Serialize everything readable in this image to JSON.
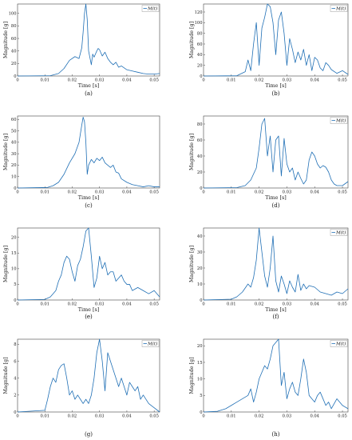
{
  "chart_data": [
    {
      "type": "line",
      "caption": "(a)",
      "xlabel": "Time [s]",
      "ylabel": "Magnitude [g]",
      "xlim": [
        0,
        0.052
      ],
      "ylim": [
        0,
        115
      ],
      "xticks": [
        "0",
        "0.01",
        "0.02",
        "0.03",
        "0.04",
        "0.05"
      ],
      "yticks": [
        0,
        20,
        40,
        60,
        80,
        100
      ],
      "legend": "M(t)",
      "legend_position": "top-right",
      "series": [
        {
          "name": "M(t)",
          "x": [
            0,
            0.012,
            0.015,
            0.017,
            0.019,
            0.021,
            0.0225,
            0.0235,
            0.024,
            0.0245,
            0.025,
            0.0255,
            0.026,
            0.027,
            0.0275,
            0.028,
            0.029,
            0.0295,
            0.03,
            0.031,
            0.032,
            0.033,
            0.034,
            0.035,
            0.036,
            0.037,
            0.038,
            0.04,
            0.042,
            0.044,
            0.046,
            0.048,
            0.05,
            0.052
          ],
          "y": [
            0,
            0.5,
            4,
            12,
            25,
            31,
            28,
            45,
            70,
            100,
            115,
            90,
            40,
            18,
            35,
            30,
            40,
            44,
            42,
            32,
            38,
            28,
            22,
            18,
            22,
            14,
            16,
            10,
            8,
            6,
            4,
            3,
            3,
            4
          ]
        }
      ]
    },
    {
      "type": "line",
      "caption": "(b)",
      "xlabel": "Time [s]",
      "ylabel": "Magnitude [g]",
      "xlim": [
        0,
        0.052
      ],
      "ylim": [
        0,
        135
      ],
      "xticks": [
        "0",
        "0.01",
        "0.02",
        "0.03",
        "0.04",
        "0.05"
      ],
      "yticks": [
        0,
        20,
        40,
        60,
        80,
        100,
        120
      ],
      "legend": "M(t)",
      "legend_position": "top-right",
      "series": [
        {
          "name": "M(t)",
          "x": [
            0,
            0.012,
            0.015,
            0.016,
            0.017,
            0.018,
            0.019,
            0.02,
            0.021,
            0.022,
            0.023,
            0.024,
            0.025,
            0.026,
            0.027,
            0.028,
            0.029,
            0.03,
            0.031,
            0.032,
            0.033,
            0.034,
            0.035,
            0.036,
            0.037,
            0.038,
            0.039,
            0.04,
            0.041,
            0.042,
            0.043,
            0.044,
            0.045,
            0.046,
            0.048,
            0.05,
            0.052
          ],
          "y": [
            0,
            0.5,
            8,
            30,
            10,
            60,
            100,
            20,
            90,
            110,
            135,
            130,
            100,
            40,
            105,
            120,
            80,
            20,
            70,
            50,
            25,
            45,
            30,
            50,
            20,
            40,
            10,
            35,
            30,
            15,
            10,
            25,
            20,
            12,
            5,
            10,
            3
          ]
        }
      ]
    },
    {
      "type": "line",
      "caption": "(c)",
      "xlabel": "Time [s]",
      "ylabel": "Magnitude [g]",
      "xlim": [
        0,
        0.052
      ],
      "ylim": [
        0,
        63
      ],
      "xticks": [
        "0",
        "0.01",
        "0.02",
        "0.03",
        "0.04",
        "0.05"
      ],
      "yticks": [
        0,
        10,
        20,
        30,
        40,
        50,
        60
      ],
      "legend": "",
      "legend_position": "",
      "series": [
        {
          "name": "M(t)",
          "x": [
            0,
            0.011,
            0.013,
            0.015,
            0.017,
            0.019,
            0.021,
            0.0225,
            0.0235,
            0.024,
            0.0245,
            0.025,
            0.0255,
            0.026,
            0.027,
            0.028,
            0.029,
            0.03,
            0.031,
            0.032,
            0.033,
            0.034,
            0.035,
            0.036,
            0.037,
            0.038,
            0.04,
            0.042,
            0.044,
            0.046,
            0.048,
            0.05,
            0.052
          ],
          "y": [
            0,
            0.5,
            2,
            5,
            12,
            22,
            30,
            40,
            55,
            62,
            58,
            40,
            12,
            20,
            25,
            22,
            26,
            24,
            27,
            22,
            20,
            18,
            20,
            14,
            13,
            8,
            5,
            3,
            2,
            1,
            2,
            1,
            1
          ]
        }
      ]
    },
    {
      "type": "line",
      "caption": "(d)",
      "xlabel": "Time [s]",
      "ylabel": "Magnitude [g]",
      "xlim": [
        0,
        0.052
      ],
      "ylim": [
        0,
        90
      ],
      "xticks": [
        "0",
        "0.01",
        "0.02",
        "0.03",
        "0.04",
        "0.05"
      ],
      "yticks": [
        0,
        20,
        40,
        60,
        80
      ],
      "legend": "M(t)",
      "legend_position": "top-right",
      "series": [
        {
          "name": "M(t)",
          "x": [
            0,
            0.012,
            0.015,
            0.017,
            0.019,
            0.02,
            0.021,
            0.022,
            0.023,
            0.024,
            0.025,
            0.026,
            0.027,
            0.028,
            0.029,
            0.03,
            0.031,
            0.032,
            0.033,
            0.034,
            0.035,
            0.036,
            0.037,
            0.038,
            0.039,
            0.04,
            0.041,
            0.042,
            0.043,
            0.044,
            0.045,
            0.046,
            0.047,
            0.048,
            0.05,
            0.052
          ],
          "y": [
            0,
            0.5,
            3,
            10,
            25,
            50,
            80,
            87,
            40,
            65,
            20,
            60,
            65,
            15,
            62,
            30,
            20,
            25,
            10,
            20,
            12,
            5,
            10,
            35,
            45,
            40,
            30,
            25,
            28,
            26,
            20,
            10,
            5,
            3,
            3,
            8
          ]
        }
      ]
    },
    {
      "type": "line",
      "caption": "(e)",
      "xlabel": "Time [s]",
      "ylabel": "Magnitude [g]",
      "xlim": [
        0,
        0.052
      ],
      "ylim": [
        0,
        23
      ],
      "xticks": [
        "0",
        "0.01",
        "0.02",
        "0.03",
        "0.04",
        "0.05"
      ],
      "yticks": [
        0,
        5,
        10,
        15,
        20
      ],
      "legend": "",
      "legend_position": "",
      "series": [
        {
          "name": "M(t)",
          "x": [
            0,
            0.01,
            0.012,
            0.014,
            0.015,
            0.016,
            0.017,
            0.018,
            0.019,
            0.02,
            0.021,
            0.022,
            0.023,
            0.024,
            0.025,
            0.026,
            0.027,
            0.028,
            0.029,
            0.03,
            0.031,
            0.032,
            0.033,
            0.034,
            0.035,
            0.036,
            0.037,
            0.038,
            0.039,
            0.04,
            0.041,
            0.042,
            0.044,
            0.046,
            0.048,
            0.05,
            0.052
          ],
          "y": [
            0,
            0.2,
            1,
            3,
            6,
            8,
            12,
            14,
            13,
            9,
            6,
            11,
            13,
            17,
            22,
            23,
            14,
            4,
            7,
            14,
            10,
            12,
            8,
            9,
            9,
            6,
            7,
            8,
            6,
            5,
            5,
            3,
            4,
            3,
            2,
            3,
            1
          ]
        }
      ]
    },
    {
      "type": "line",
      "caption": "(f)",
      "xlabel": "Time [s]",
      "ylabel": "Magnitude [g]",
      "xlim": [
        0,
        0.052
      ],
      "ylim": [
        0,
        45
      ],
      "xticks": [
        "0",
        "0.01",
        "0.02",
        "0.03",
        "0.04",
        "0.05"
      ],
      "yticks": [
        0,
        10,
        20,
        30,
        40
      ],
      "legend": "M(t)",
      "legend_position": "top-right",
      "series": [
        {
          "name": "M(t)",
          "x": [
            0,
            0.01,
            0.012,
            0.014,
            0.016,
            0.017,
            0.018,
            0.019,
            0.02,
            0.021,
            0.022,
            0.023,
            0.024,
            0.025,
            0.026,
            0.027,
            0.028,
            0.029,
            0.03,
            0.031,
            0.032,
            0.033,
            0.034,
            0.035,
            0.036,
            0.037,
            0.038,
            0.04,
            0.042,
            0.044,
            0.046,
            0.048,
            0.05,
            0.052
          ],
          "y": [
            0,
            0.5,
            2,
            5,
            10,
            8,
            14,
            25,
            45,
            30,
            15,
            8,
            20,
            40,
            12,
            5,
            15,
            10,
            4,
            12,
            8,
            5,
            16,
            6,
            10,
            7,
            9,
            8,
            5,
            4,
            3,
            5,
            4,
            7
          ]
        }
      ]
    },
    {
      "type": "line",
      "caption": "(g)",
      "xlabel": "",
      "ylabel": "Magnitude [g]",
      "xlim": [
        0,
        0.052
      ],
      "ylim": [
        0,
        8.6
      ],
      "xticks": [
        "0",
        "0.01",
        "0.02",
        "0.03",
        "0.04",
        "0.05"
      ],
      "yticks": [
        0,
        2,
        4,
        6,
        8
      ],
      "legend": "M(t)",
      "legend_position": "top-right",
      "series": [
        {
          "name": "M(t)",
          "x": [
            0,
            0.01,
            0.011,
            0.012,
            0.013,
            0.014,
            0.015,
            0.016,
            0.017,
            0.018,
            0.019,
            0.02,
            0.021,
            0.022,
            0.023,
            0.024,
            0.025,
            0.026,
            0.027,
            0.028,
            0.029,
            0.03,
            0.031,
            0.032,
            0.033,
            0.034,
            0.035,
            0.036,
            0.037,
            0.038,
            0.039,
            0.04,
            0.041,
            0.042,
            0.043,
            0.044,
            0.045,
            0.046,
            0.048,
            0.05,
            0.052
          ],
          "y": [
            0,
            0.2,
            1.5,
            3,
            4,
            3.5,
            5,
            5.5,
            5.7,
            4,
            2,
            2.5,
            1.5,
            2,
            1.5,
            1,
            1.5,
            1,
            2,
            4,
            7,
            8.6,
            6,
            2.5,
            7,
            6,
            5,
            4,
            3,
            4,
            3,
            2,
            3.5,
            3,
            2.5,
            3,
            1.5,
            2,
            1,
            0.5,
            0
          ]
        }
      ]
    },
    {
      "type": "line",
      "caption": "(h)",
      "xlabel": "",
      "ylabel": "Magnitude [g]",
      "xlim": [
        0,
        0.052
      ],
      "ylim": [
        0,
        22
      ],
      "xticks": [
        "0",
        "0.01",
        "0.02",
        "0.03",
        "0.04",
        "0.05"
      ],
      "yticks": [
        0,
        5,
        10,
        15,
        20
      ],
      "legend": "M(t)",
      "legend_position": "top-right",
      "series": [
        {
          "name": "M(t)",
          "x": [
            0,
            0.005,
            0.008,
            0.01,
            0.012,
            0.014,
            0.016,
            0.017,
            0.018,
            0.019,
            0.02,
            0.021,
            0.022,
            0.023,
            0.024,
            0.025,
            0.026,
            0.027,
            0.028,
            0.029,
            0.03,
            0.031,
            0.032,
            0.033,
            0.034,
            0.035,
            0.036,
            0.037,
            0.038,
            0.039,
            0.04,
            0.041,
            0.042,
            0.043,
            0.044,
            0.045,
            0.046,
            0.048,
            0.05,
            0.052
          ],
          "y": [
            0,
            0.2,
            1,
            2,
            3,
            4,
            5,
            7,
            3,
            6,
            10,
            12,
            14,
            13,
            16,
            20,
            21,
            22,
            8,
            12,
            4,
            7,
            9,
            6,
            5,
            10,
            16,
            12,
            5,
            4,
            3,
            5,
            6,
            4,
            2,
            3,
            1,
            4,
            2,
            1
          ]
        }
      ]
    }
  ]
}
